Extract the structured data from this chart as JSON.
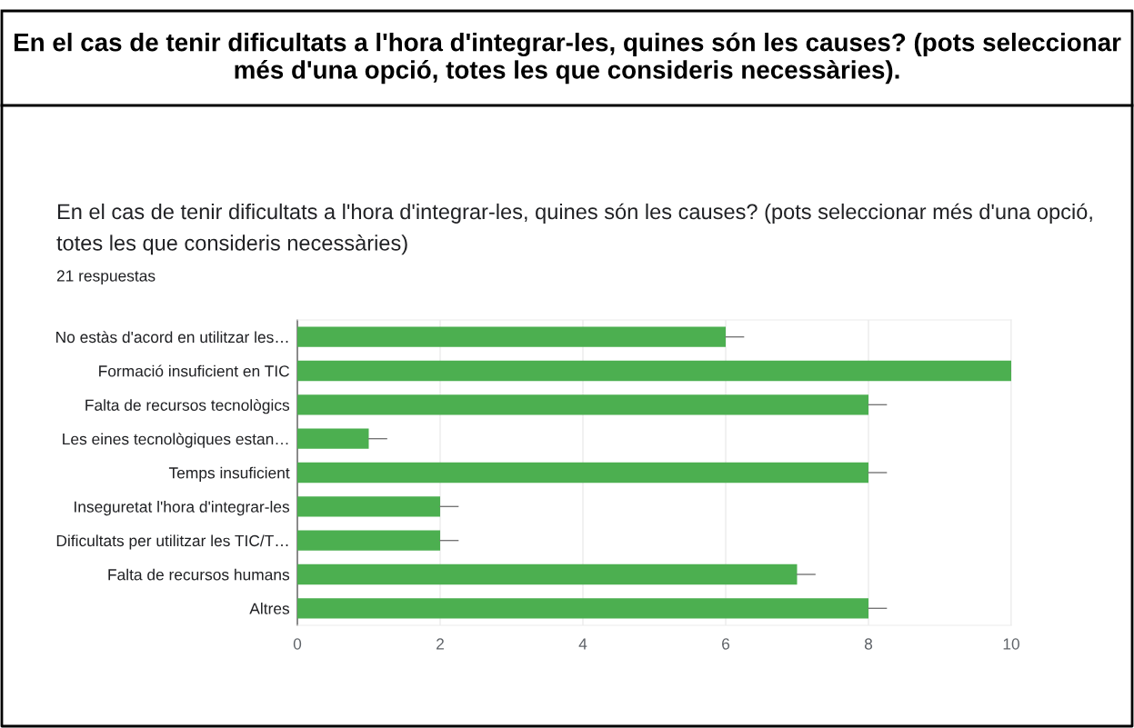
{
  "chart_data": {
    "type": "bar",
    "orientation": "horizontal",
    "title": "En el cas de tenir dificultats a l'hora d'integrar-les, quines són les causes? (pots seleccionar més d'una opció, totes les que consideris necessàries).",
    "subtitle": "En el cas de tenir dificultats a l'hora d'integrar-les, quines són les causes? (pots seleccionar més d'una opció, totes les que consideris necessàries)",
    "annotations": [
      "21 respuestas"
    ],
    "categories": [
      "No estàs d'acord en utilitzar les…",
      "Formació insuficient en TIC",
      "Falta de recursos tecnològics",
      "Les eines tecnològiques estan…",
      "Temps insuficient",
      "Inseguretat l'hora d'integrar-les",
      "Dificultats per utilitzar les TIC/T…",
      "Falta de recursos humans",
      "Altres"
    ],
    "values": [
      6,
      10,
      8,
      1,
      8,
      2,
      2,
      7,
      8
    ],
    "errors": [
      [
        6,
        6.25
      ],
      [
        10,
        10
      ],
      [
        8,
        8.25
      ],
      [
        1,
        1.25
      ],
      [
        8,
        8.25
      ],
      [
        2,
        2.25
      ],
      [
        2,
        2.25
      ],
      [
        7,
        7.25
      ],
      [
        8,
        8.25
      ]
    ],
    "color": "#4caf50",
    "xlim": [
      0,
      10
    ],
    "xticks": [
      0,
      2,
      4,
      6,
      8,
      10
    ],
    "grid": "x",
    "legend": false
  }
}
